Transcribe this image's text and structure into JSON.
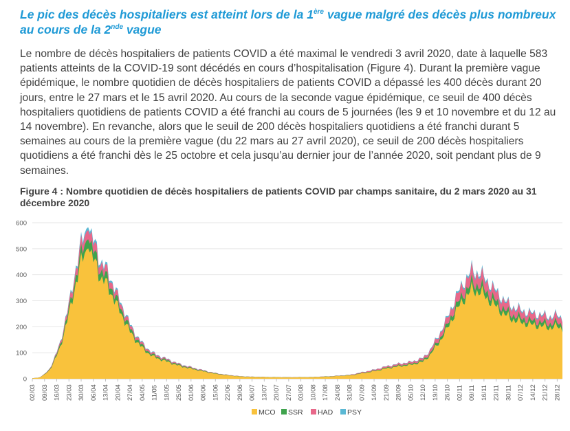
{
  "heading": {
    "part1": "Le pic des décès hospitaliers est atteint lors de la 1",
    "sup1": "ère",
    "part2": " vague malgré des décès plus nombreux au cours de la 2",
    "sup2": "nde",
    "part3": " vague"
  },
  "paragraph": "Le nombre de décès hospitaliers de patients COVID a été maximal le vendredi 3 avril 2020, date à laquelle 583 patients atteints de la COVID-19 sont décédés en cours d’hospitalisation (Figure 4). Durant la première vague épidémique, le nombre quotidien de décès hospitaliers de patients COVID a dépassé les 400 décès durant 20 jours, entre le 27 mars et le 15 avril 2020. Au cours de la seconde vague épidémique, ce seuil de 400 décès hospitaliers quotidiens de patients COVID a été franchi au cours de 5 journées (les 9 et 10 novembre et du 12 au 14 novembre). En revanche, alors que le seuil de 200 décès hospitaliers quotidiens a été franchi durant 5 semaines au cours de la première vague (du 22 mars au 27 avril 2020), ce seuil de 200 décès hospitaliers quotidiens a été franchi dès le 25 octobre et cela jusqu’au dernier jour de l’année 2020, soit pendant plus de 9 semaines.",
  "figure_caption": "Figure 4 : Nombre quotidien de décès hospitaliers de patients COVID par champs sanitaire, du 2 mars 2020 au 31 décembre 2020",
  "colors": {
    "MCO": "#f9c23c",
    "SSR": "#3fa34d",
    "HAD": "#e8688a",
    "PSY": "#5bb8d4",
    "axis": "#bfbfbf",
    "grid": "#e6e6e6"
  },
  "chart_data": {
    "type": "area",
    "stacked": true,
    "x_start": "2020-03-02",
    "x_end": "2020-12-31",
    "tick_labels": [
      "02/03",
      "09/03",
      "16/03",
      "23/03",
      "30/03",
      "06/04",
      "13/04",
      "20/04",
      "27/04",
      "04/05",
      "11/05",
      "18/05",
      "25/05",
      "01/06",
      "08/06",
      "15/06",
      "22/06",
      "29/06",
      "06/07",
      "13/07",
      "20/07",
      "27/07",
      "03/08",
      "10/08",
      "17/08",
      "24/08",
      "31/08",
      "07/09",
      "14/09",
      "21/09",
      "28/09",
      "05/10",
      "12/10",
      "19/10",
      "26/10",
      "02/11",
      "09/11",
      "16/11",
      "23/11",
      "30/11",
      "07/12",
      "14/12",
      "21/12",
      "28/12"
    ],
    "y_ticks": [
      0,
      100,
      200,
      300,
      400,
      500,
      600
    ],
    "ylim": [
      0,
      600
    ],
    "legend": [
      "MCO",
      "SSR",
      "HAD",
      "PSY"
    ],
    "legend_position": "bottom",
    "total_keypoints": [
      [
        "2020-03-02",
        2
      ],
      [
        "2020-03-06",
        5
      ],
      [
        "2020-03-09",
        18
      ],
      [
        "2020-03-12",
        40
      ],
      [
        "2020-03-15",
        85
      ],
      [
        "2020-03-18",
        140
      ],
      [
        "2020-03-21",
        230
      ],
      [
        "2020-03-24",
        320
      ],
      [
        "2020-03-27",
        430
      ],
      [
        "2020-03-30",
        520
      ],
      [
        "2020-04-01",
        560
      ],
      [
        "2020-04-03",
        583
      ],
      [
        "2020-04-05",
        540
      ],
      [
        "2020-04-08",
        510
      ],
      [
        "2020-04-10",
        450
      ],
      [
        "2020-04-14",
        420
      ],
      [
        "2020-04-17",
        370
      ],
      [
        "2020-04-20",
        320
      ],
      [
        "2020-04-24",
        260
      ],
      [
        "2020-04-27",
        210
      ],
      [
        "2020-05-01",
        165
      ],
      [
        "2020-05-05",
        130
      ],
      [
        "2020-05-10",
        100
      ],
      [
        "2020-05-15",
        85
      ],
      [
        "2020-05-20",
        72
      ],
      [
        "2020-05-25",
        58
      ],
      [
        "2020-06-01",
        45
      ],
      [
        "2020-06-08",
        33
      ],
      [
        "2020-06-15",
        22
      ],
      [
        "2020-06-22",
        15
      ],
      [
        "2020-06-29",
        10
      ],
      [
        "2020-07-06",
        8
      ],
      [
        "2020-07-15",
        7
      ],
      [
        "2020-07-27",
        6
      ],
      [
        "2020-08-10",
        7
      ],
      [
        "2020-08-20",
        10
      ],
      [
        "2020-08-31",
        15
      ],
      [
        "2020-09-07",
        25
      ],
      [
        "2020-09-14",
        35
      ],
      [
        "2020-09-21",
        48
      ],
      [
        "2020-09-28",
        58
      ],
      [
        "2020-10-05",
        65
      ],
      [
        "2020-10-12",
        80
      ],
      [
        "2020-10-16",
        110
      ],
      [
        "2020-10-19",
        145
      ],
      [
        "2020-10-22",
        180
      ],
      [
        "2020-10-25",
        220
      ],
      [
        "2020-10-28",
        270
      ],
      [
        "2020-11-01",
        330
      ],
      [
        "2020-11-04",
        370
      ],
      [
        "2020-11-07",
        395
      ],
      [
        "2020-11-09",
        420
      ],
      [
        "2020-11-12",
        410
      ],
      [
        "2020-11-14",
        405
      ],
      [
        "2020-11-17",
        385
      ],
      [
        "2020-11-20",
        360
      ],
      [
        "2020-11-24",
        330
      ],
      [
        "2020-11-28",
        300
      ],
      [
        "2020-12-02",
        280
      ],
      [
        "2020-12-07",
        265
      ],
      [
        "2020-12-12",
        255
      ],
      [
        "2020-12-16",
        250
      ],
      [
        "2020-12-20",
        245
      ],
      [
        "2020-12-24",
        240
      ],
      [
        "2020-12-28",
        245
      ],
      [
        "2020-12-31",
        235
      ]
    ],
    "share": {
      "MCO": 0.86,
      "SSR": 0.06,
      "HAD": 0.06,
      "PSY": 0.02
    },
    "share_second_wave": {
      "MCO": 0.82,
      "SSR": 0.06,
      "HAD": 0.1,
      "PSY": 0.02
    }
  }
}
